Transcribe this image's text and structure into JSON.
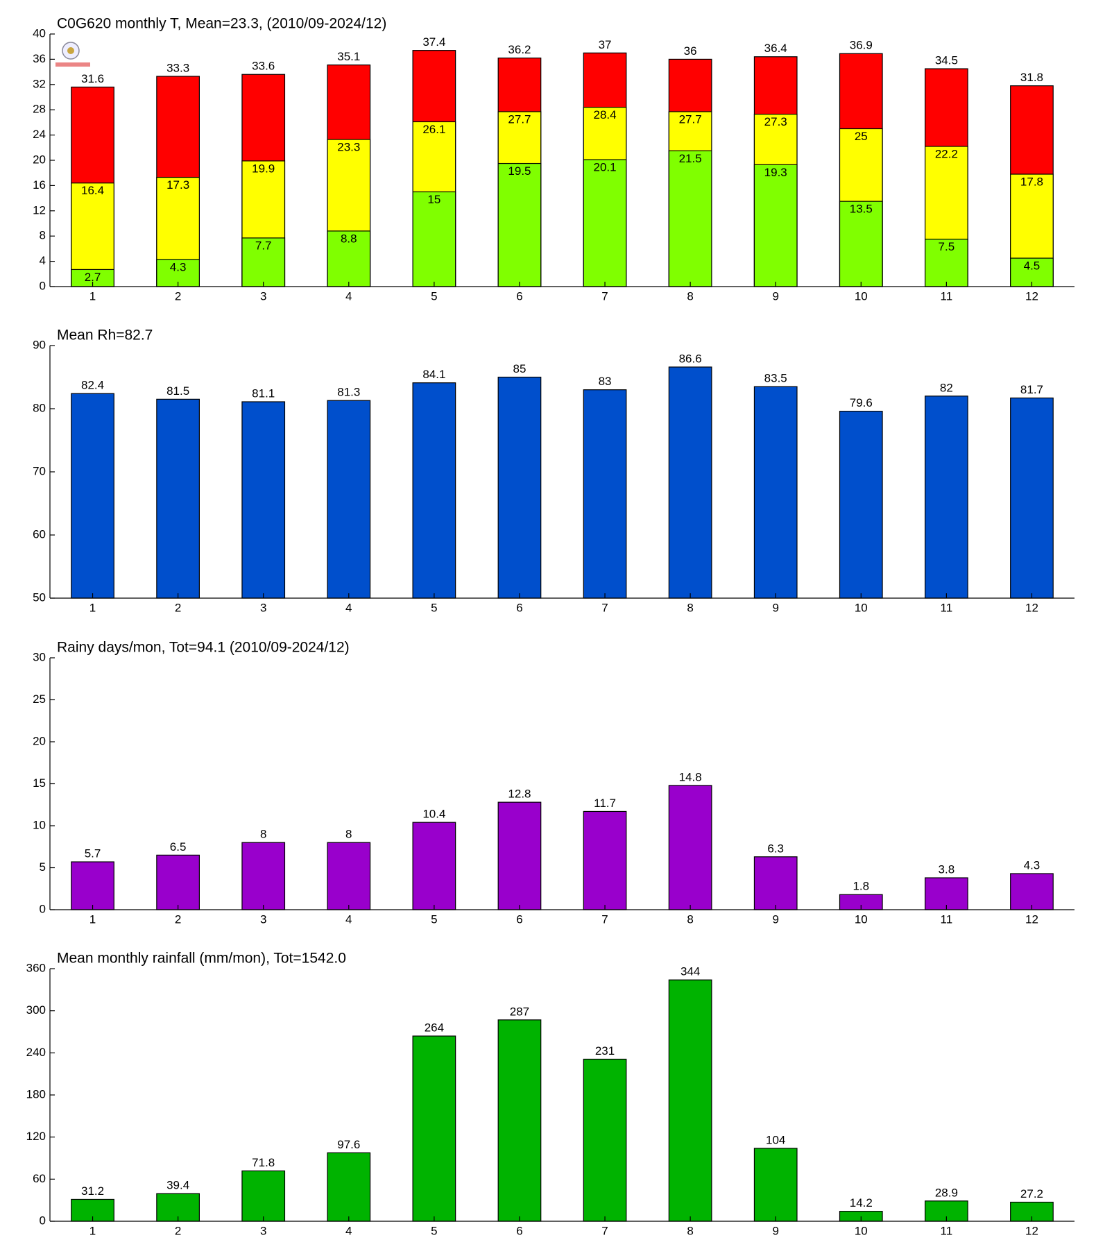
{
  "chart_data": [
    {
      "type": "bar",
      "title": "C0G620 monthly T, Mean=23.3, (2010/09-2024/12)",
      "categories": [
        "1",
        "2",
        "3",
        "4",
        "5",
        "6",
        "7",
        "8",
        "9",
        "10",
        "11",
        "12"
      ],
      "series": [
        {
          "color": "#ff0000",
          "values": [
            31.6,
            33.3,
            33.6,
            35.1,
            37.4,
            36.2,
            37,
            36,
            36.4,
            36.9,
            34.5,
            31.8
          ]
        },
        {
          "color": "#ffff00",
          "values": [
            16.4,
            17.3,
            19.9,
            23.3,
            26.1,
            27.7,
            28.4,
            27.7,
            27.3,
            25,
            22.2,
            17.8
          ]
        },
        {
          "color": "#80ff00",
          "values": [
            2.7,
            4.3,
            7.7,
            8.8,
            15,
            19.5,
            20.1,
            21.5,
            19.3,
            13.5,
            7.5,
            4.5
          ]
        }
      ],
      "ylim": [
        0,
        40
      ],
      "yticks": [
        0,
        4,
        8,
        12,
        16,
        20,
        24,
        28,
        32,
        36,
        40
      ]
    },
    {
      "type": "bar",
      "title": "Mean Rh=82.7",
      "categories": [
        "1",
        "2",
        "3",
        "4",
        "5",
        "6",
        "7",
        "8",
        "9",
        "10",
        "11",
        "12"
      ],
      "series": [
        {
          "color": "#004fcc",
          "values": [
            82.4,
            81.5,
            81.1,
            81.3,
            84.1,
            85,
            83,
            86.6,
            83.5,
            79.6,
            82,
            81.7
          ]
        }
      ],
      "ylim": [
        50,
        90
      ],
      "yticks": [
        50,
        60,
        70,
        80,
        90
      ]
    },
    {
      "type": "bar",
      "title": "Rainy days/mon, Tot=94.1 (2010/09-2024/12)",
      "categories": [
        "1",
        "2",
        "3",
        "4",
        "5",
        "6",
        "7",
        "8",
        "9",
        "10",
        "11",
        "12"
      ],
      "series": [
        {
          "color": "#9900cc",
          "values": [
            5.7,
            6.5,
            8,
            8,
            10.4,
            12.8,
            11.7,
            14.8,
            6.3,
            1.8,
            3.8,
            4.3
          ]
        }
      ],
      "ylim": [
        0,
        30
      ],
      "yticks": [
        0,
        5,
        10,
        15,
        20,
        25,
        30
      ]
    },
    {
      "type": "bar",
      "title": "Mean monthly rainfall (mm/mon), Tot=1542.0",
      "categories": [
        "1",
        "2",
        "3",
        "4",
        "5",
        "6",
        "7",
        "8",
        "9",
        "10",
        "11",
        "12"
      ],
      "series": [
        {
          "color": "#00b300",
          "values": [
            31.2,
            39.4,
            71.8,
            97.6,
            264,
            287,
            231,
            344,
            104,
            14.2,
            28.9,
            27.2
          ]
        }
      ],
      "ylim": [
        0,
        360
      ],
      "yticks": [
        0,
        60,
        120,
        180,
        240,
        300,
        360
      ]
    }
  ]
}
